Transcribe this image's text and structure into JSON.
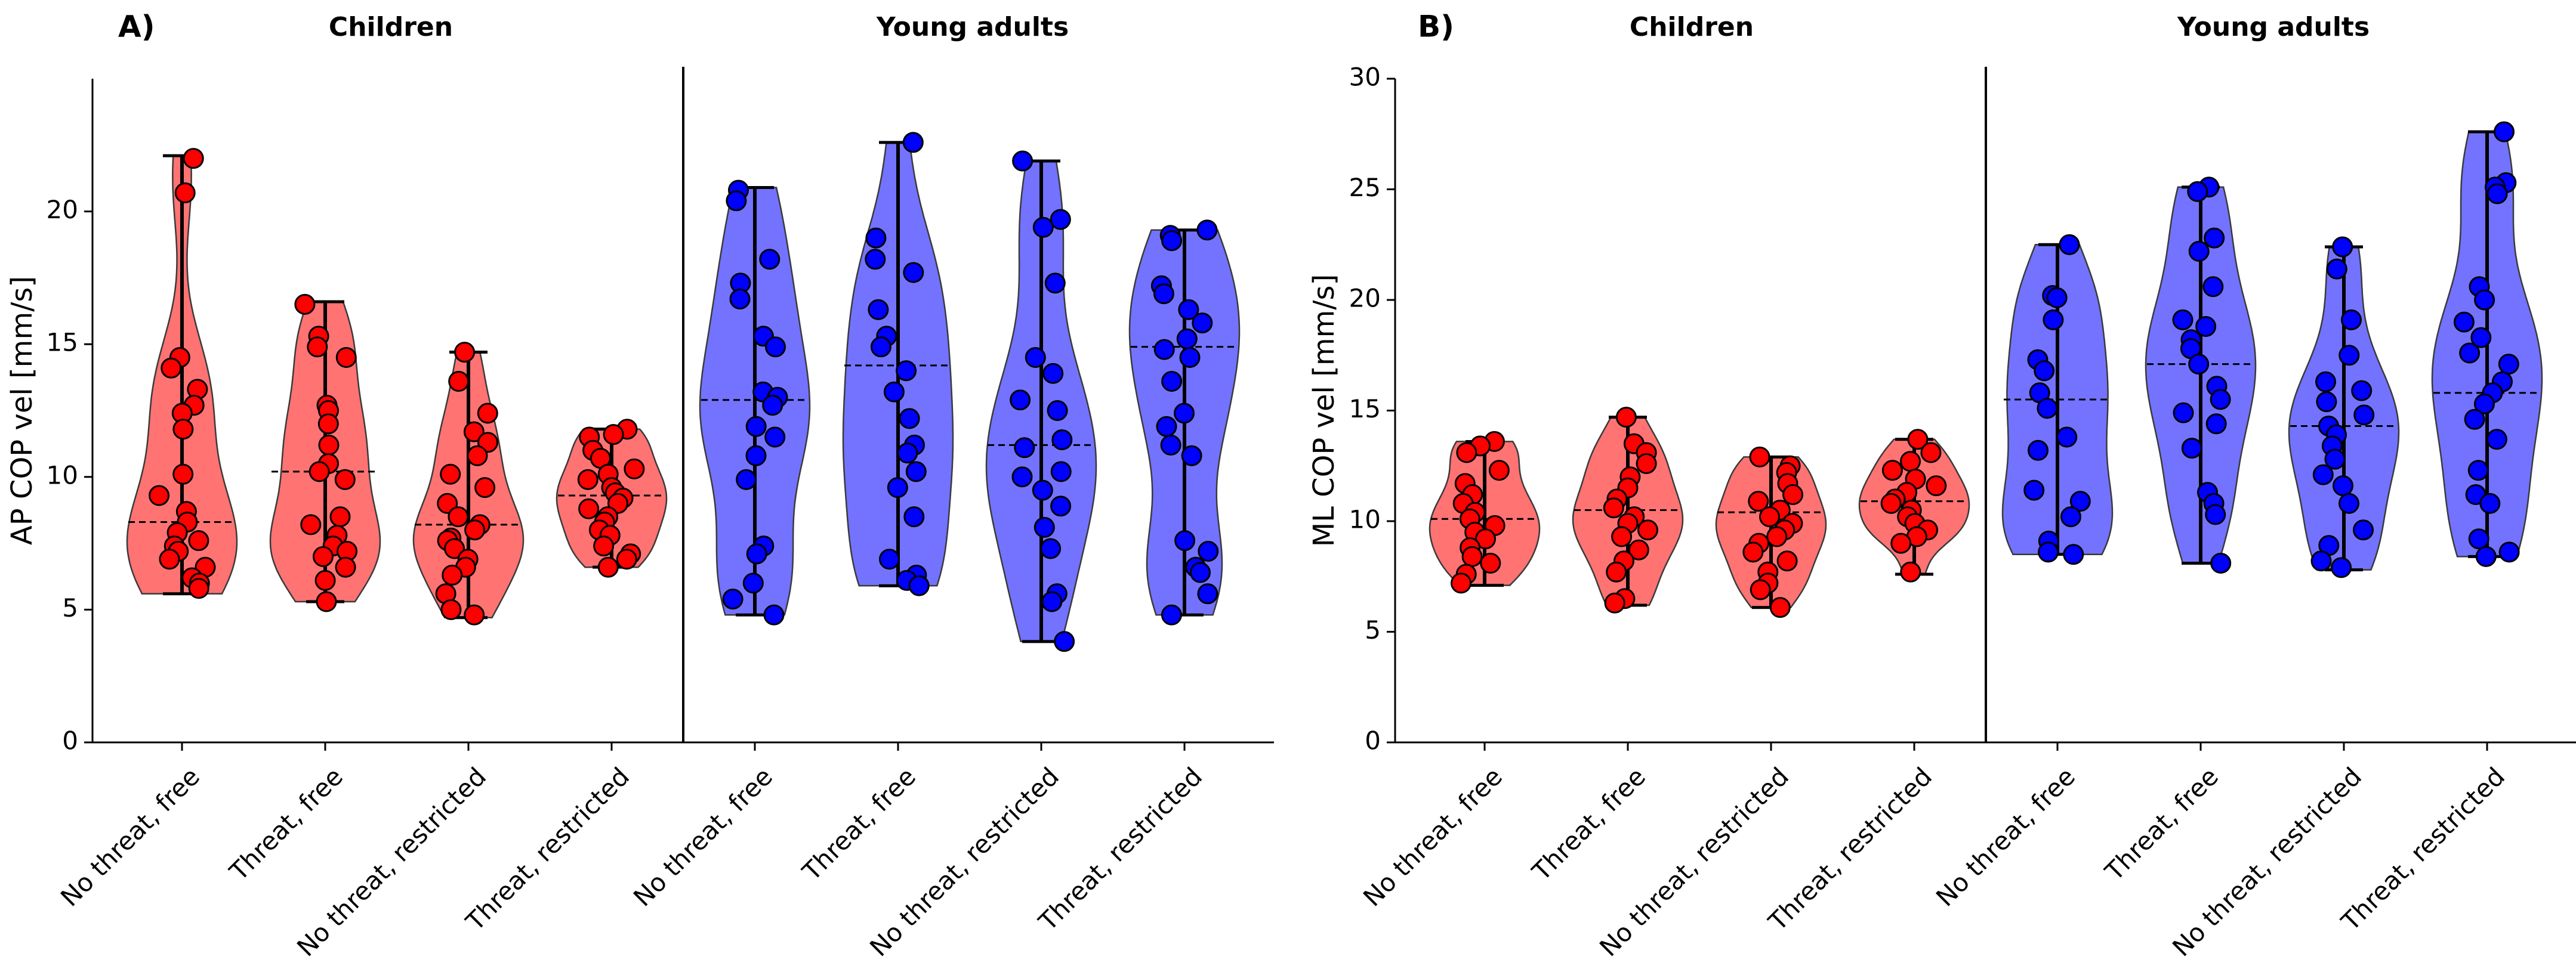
{
  "chart_data": [
    {
      "type": "violin",
      "panel_label": "A)",
      "ylabel": "AP COP vel [mm/s]",
      "ylim": [
        0,
        25
      ],
      "yticks": [
        0,
        5,
        10,
        15,
        20
      ],
      "groups": [
        "Children",
        "Young adults"
      ],
      "categories": [
        "No threat, free",
        "Threat, free",
        "No threat, restricted",
        "Threat, restricted"
      ],
      "colors": {
        "Children": "#ff0000",
        "Young adults": "#0000ff"
      },
      "series": [
        {
          "group": "Children",
          "name": "No threat, free",
          "min": 5.6,
          "max": 22.1,
          "median": 8.3,
          "points": [
            22.0,
            20.7,
            14.5,
            14.1,
            13.3,
            12.7,
            12.4,
            11.8,
            10.1,
            9.3,
            8.7,
            8.3,
            7.9,
            7.6,
            7.4,
            7.2,
            6.9,
            6.6,
            6.2,
            6.0,
            5.8
          ]
        },
        {
          "group": "Children",
          "name": "Threat, free",
          "min": 5.3,
          "max": 16.6,
          "median": 10.2,
          "points": [
            16.5,
            15.3,
            14.9,
            14.5,
            12.7,
            12.5,
            12.0,
            11.2,
            10.5,
            10.2,
            9.9,
            8.5,
            8.2,
            7.8,
            7.4,
            7.2,
            7.0,
            6.6,
            6.1,
            5.3
          ]
        },
        {
          "group": "Children",
          "name": "No threat, restricted",
          "min": 4.7,
          "max": 14.7,
          "median": 8.2,
          "points": [
            14.7,
            13.6,
            12.4,
            11.7,
            11.3,
            10.8,
            10.1,
            9.6,
            9.0,
            8.5,
            8.2,
            8.0,
            7.7,
            7.6,
            7.3,
            6.9,
            6.6,
            6.3,
            5.6,
            5.0,
            4.8
          ]
        },
        {
          "group": "Children",
          "name": "Threat, restricted",
          "min": 6.6,
          "max": 11.8,
          "median": 9.3,
          "points": [
            11.8,
            11.6,
            11.5,
            11.0,
            10.7,
            10.3,
            10.1,
            9.9,
            9.6,
            9.4,
            9.2,
            9.0,
            8.8,
            8.5,
            8.3,
            8.0,
            7.8,
            7.4,
            7.1,
            6.9,
            6.6
          ]
        },
        {
          "group": "Young adults",
          "name": "No threat, free",
          "min": 4.8,
          "max": 20.9,
          "median": 12.9,
          "points": [
            20.8,
            20.4,
            18.2,
            17.3,
            16.7,
            15.3,
            14.9,
            13.2,
            13.0,
            12.7,
            11.9,
            11.5,
            10.8,
            9.9,
            7.4,
            7.1,
            6.0,
            5.4,
            4.8
          ]
        },
        {
          "group": "Young adults",
          "name": "Threat, free",
          "min": 5.9,
          "max": 22.6,
          "median": 14.2,
          "points": [
            22.6,
            19.0,
            18.2,
            17.7,
            16.3,
            15.3,
            14.9,
            14.0,
            13.2,
            12.2,
            11.2,
            10.9,
            10.2,
            9.6,
            8.5,
            6.9,
            6.3,
            6.1,
            5.9
          ]
        },
        {
          "group": "Young adults",
          "name": "No threat, restricted",
          "min": 3.8,
          "max": 21.9,
          "median": 11.2,
          "points": [
            21.9,
            19.7,
            19.4,
            17.3,
            14.5,
            13.9,
            12.9,
            12.5,
            11.4,
            11.1,
            10.2,
            10.0,
            9.5,
            8.9,
            8.1,
            7.3,
            5.6,
            5.3,
            3.8
          ]
        },
        {
          "group": "Young adults",
          "name": "Threat, restricted",
          "min": 4.8,
          "max": 19.3,
          "median": 14.9,
          "points": [
            19.3,
            19.1,
            18.9,
            17.2,
            16.9,
            16.3,
            15.8,
            15.2,
            14.8,
            14.5,
            13.6,
            12.4,
            11.9,
            11.2,
            10.8,
            7.6,
            7.2,
            6.6,
            6.4,
            5.6,
            4.8
          ]
        }
      ]
    },
    {
      "type": "violin",
      "panel_label": "B)",
      "ylabel": "ML COP vel [mm/s]",
      "ylim": [
        0,
        30
      ],
      "yticks": [
        0,
        5,
        10,
        15,
        20,
        25,
        30
      ],
      "groups": [
        "Children",
        "Young adults"
      ],
      "categories": [
        "No threat, free",
        "Threat, free",
        "No threat, restricted",
        "Threat, restricted"
      ],
      "colors": {
        "Children": "#ff0000",
        "Young adults": "#0000ff"
      },
      "series": [
        {
          "group": "Children",
          "name": "No threat, free",
          "min": 7.1,
          "max": 13.6,
          "median": 10.1,
          "points": [
            13.6,
            13.4,
            13.1,
            12.3,
            11.7,
            11.2,
            10.8,
            10.4,
            10.1,
            9.8,
            9.5,
            9.2,
            8.8,
            8.4,
            8.1,
            7.6,
            7.2
          ]
        },
        {
          "group": "Children",
          "name": "Threat, free",
          "min": 6.2,
          "max": 14.7,
          "median": 10.5,
          "points": [
            14.7,
            13.5,
            13.1,
            12.6,
            12.0,
            11.5,
            11.0,
            10.6,
            10.2,
            9.9,
            9.6,
            9.3,
            8.7,
            8.2,
            7.7,
            6.5,
            6.3
          ]
        },
        {
          "group": "Children",
          "name": "No threat, restricted",
          "min": 6.1,
          "max": 12.9,
          "median": 10.4,
          "points": [
            12.9,
            12.5,
            12.2,
            11.7,
            11.2,
            10.9,
            10.5,
            10.2,
            9.9,
            9.6,
            9.3,
            9.0,
            8.6,
            8.2,
            7.7,
            7.2,
            6.9,
            6.1
          ]
        },
        {
          "group": "Children",
          "name": "Threat, restricted",
          "min": 7.6,
          "max": 13.7,
          "median": 10.9,
          "points": [
            13.7,
            13.1,
            12.7,
            12.3,
            11.9,
            11.6,
            11.3,
            11.0,
            10.8,
            10.5,
            10.2,
            9.9,
            9.6,
            9.3,
            9.0,
            7.7
          ]
        },
        {
          "group": "Young adults",
          "name": "No threat, free",
          "min": 8.5,
          "max": 22.5,
          "median": 15.5,
          "points": [
            22.5,
            20.2,
            20.1,
            19.1,
            17.3,
            16.8,
            15.8,
            15.1,
            13.8,
            13.2,
            11.4,
            10.9,
            10.2,
            9.1,
            8.6,
            8.5
          ]
        },
        {
          "group": "Young adults",
          "name": "Threat, free",
          "min": 8.1,
          "max": 25.1,
          "median": 17.1,
          "points": [
            25.1,
            24.9,
            22.8,
            22.2,
            20.6,
            19.1,
            18.8,
            18.2,
            17.8,
            17.1,
            16.1,
            15.5,
            14.9,
            14.4,
            13.3,
            11.3,
            10.8,
            10.3,
            8.1
          ]
        },
        {
          "group": "Young adults",
          "name": "No threat, restricted",
          "min": 7.8,
          "max": 22.4,
          "median": 14.3,
          "points": [
            22.4,
            21.4,
            19.1,
            17.5,
            16.3,
            15.9,
            15.4,
            14.8,
            14.3,
            13.9,
            13.4,
            12.8,
            12.1,
            11.6,
            10.8,
            9.6,
            8.9,
            8.2,
            7.9
          ]
        },
        {
          "group": "Young adults",
          "name": "Threat, restricted",
          "min": 8.4,
          "max": 27.6,
          "median": 15.8,
          "points": [
            27.6,
            25.3,
            25.1,
            24.8,
            20.6,
            20.0,
            19.0,
            18.3,
            17.6,
            17.1,
            16.3,
            15.8,
            15.3,
            14.6,
            13.7,
            12.3,
            11.2,
            10.8,
            9.2,
            8.6,
            8.4
          ]
        }
      ]
    }
  ]
}
